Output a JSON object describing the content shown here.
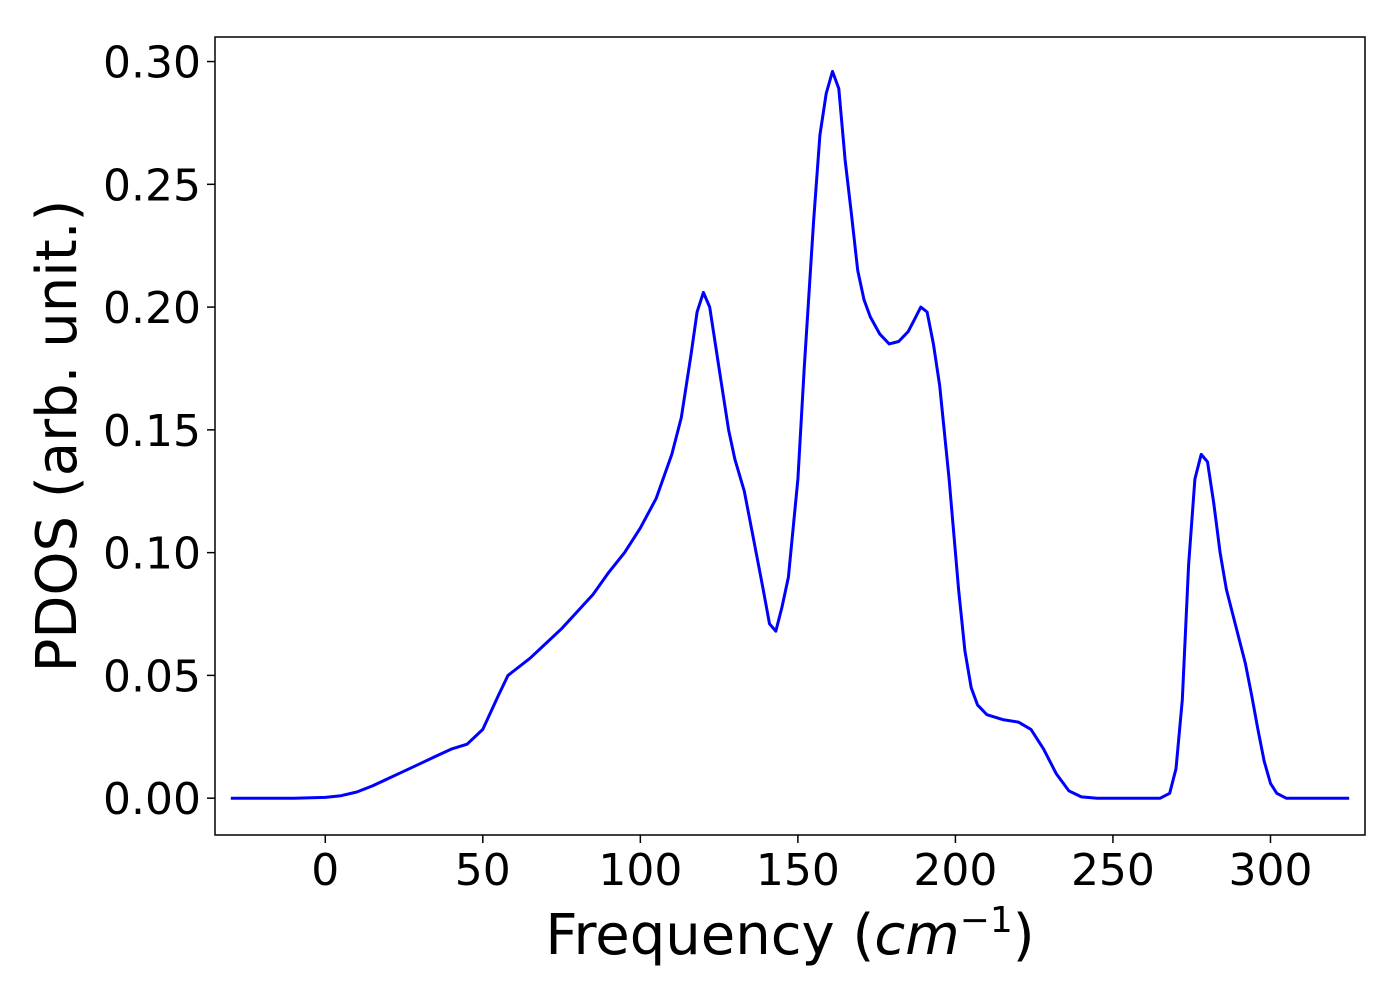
{
  "chart_data": {
    "type": "line",
    "title": "",
    "xlabel": "Frequency (",
    "xlabel_math": "cm",
    "xlabel_sup": "−1",
    "xlabel_end": ")",
    "ylabel": "PDOS (arb. unit.)",
    "xlim": [
      -35,
      330
    ],
    "ylim": [
      -0.015,
      0.31
    ],
    "grid": false,
    "legend": "none",
    "line_color": "#0000ff",
    "xticks": [
      0,
      50,
      100,
      150,
      200,
      250,
      300
    ],
    "xtick_labels": [
      "0",
      "50",
      "100",
      "150",
      "200",
      "250",
      "300"
    ],
    "yticks": [
      0,
      0.05,
      0.1,
      0.15,
      0.2,
      0.25,
      0.3
    ],
    "ytick_labels": [
      "0.00",
      "0.05",
      "0.10",
      "0.15",
      "0.20",
      "0.25",
      "0.30"
    ],
    "series": [
      {
        "x": [
          -30,
          -20,
          -10,
          0,
          5,
          10,
          15,
          20,
          25,
          30,
          35,
          40,
          45,
          50,
          55,
          58,
          60,
          65,
          70,
          75,
          80,
          85,
          90,
          95,
          100,
          105,
          110,
          113,
          116,
          118,
          120,
          122,
          125,
          128,
          130,
          133,
          136,
          139,
          141,
          143,
          145,
          147,
          150,
          152,
          155,
          157,
          159,
          161,
          163,
          165,
          167,
          169,
          171,
          173,
          176,
          179,
          182,
          185,
          187,
          189,
          191,
          193,
          195,
          198,
          201,
          203,
          205,
          207,
          210,
          215,
          220,
          224,
          228,
          232,
          236,
          240,
          245,
          255,
          265,
          268,
          270,
          272,
          274,
          276,
          278,
          280,
          282,
          284,
          286,
          288,
          290,
          292,
          294,
          296,
          298,
          300,
          302,
          305,
          315,
          325
        ],
        "y": [
          0,
          0,
          0,
          0.0003,
          0.001,
          0.0025,
          0.005,
          0.008,
          0.011,
          0.014,
          0.017,
          0.02,
          0.022,
          0.028,
          0.042,
          0.05,
          0.052,
          0.057,
          0.063,
          0.069,
          0.076,
          0.083,
          0.092,
          0.1,
          0.11,
          0.122,
          0.14,
          0.155,
          0.18,
          0.198,
          0.206,
          0.2,
          0.175,
          0.15,
          0.138,
          0.125,
          0.105,
          0.085,
          0.071,
          0.068,
          0.078,
          0.09,
          0.13,
          0.175,
          0.235,
          0.27,
          0.287,
          0.296,
          0.289,
          0.26,
          0.238,
          0.215,
          0.203,
          0.196,
          0.189,
          0.185,
          0.186,
          0.19,
          0.195,
          0.2,
          0.198,
          0.185,
          0.168,
          0.13,
          0.085,
          0.06,
          0.045,
          0.038,
          0.034,
          0.032,
          0.031,
          0.028,
          0.02,
          0.01,
          0.003,
          0.0005,
          0,
          0,
          0,
          0.002,
          0.012,
          0.04,
          0.095,
          0.13,
          0.14,
          0.137,
          0.12,
          0.1,
          0.085,
          0.075,
          0.065,
          0.055,
          0.042,
          0.028,
          0.015,
          0.006,
          0.002,
          0,
          0,
          0
        ]
      }
    ]
  }
}
